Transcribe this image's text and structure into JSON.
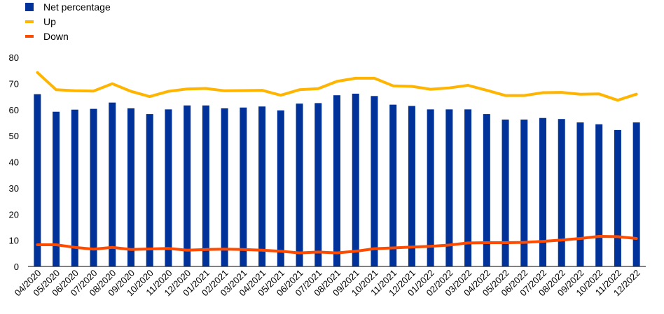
{
  "chart_data": {
    "type": "bar",
    "legend": {
      "placement": "top-left",
      "items": [
        {
          "label": "Net percentage",
          "kind": "bar",
          "color": "#003299"
        },
        {
          "label": "Up",
          "kind": "line",
          "color": "#FFB400"
        },
        {
          "label": "Down",
          "kind": "line",
          "color": "#FF4B00"
        }
      ]
    },
    "categories": [
      "04/2020",
      "05/2020",
      "06/2020",
      "07/2020",
      "08/2020",
      "09/2020",
      "10/2020",
      "11/2020",
      "12/2020",
      "01/2021",
      "02/2021",
      "03/2021",
      "04/2021",
      "05/2021",
      "06/2021",
      "07/2021",
      "08/2021",
      "09/2021",
      "10/2021",
      "11/2021",
      "12/2021",
      "01/2022",
      "02/2022",
      "03/2022",
      "04/2022",
      "05/2022",
      "06/2022",
      "07/2022",
      "08/2022",
      "09/2022",
      "10/2022",
      "11/2022",
      "12/2022"
    ],
    "series": [
      {
        "name": "Net percentage",
        "type": "bar",
        "color": "#003299",
        "values": [
          65.9,
          59.2,
          60.0,
          60.3,
          62.7,
          60.5,
          58.3,
          60.1,
          61.6,
          61.6,
          60.5,
          60.8,
          61.2,
          59.7,
          62.3,
          62.5,
          65.5,
          66.1,
          65.2,
          61.9,
          61.4,
          60.1,
          60.1,
          60.1,
          58.3,
          56.2,
          56.2,
          56.8,
          56.4,
          55.1,
          54.4,
          52.2,
          55.1
        ]
      },
      {
        "name": "Up",
        "type": "line",
        "color": "#FFB400",
        "values": [
          74.2,
          67.6,
          67.2,
          67.1,
          69.9,
          67.0,
          65.0,
          67.0,
          67.9,
          68.1,
          67.2,
          67.3,
          67.4,
          65.5,
          67.6,
          68.0,
          70.8,
          72.0,
          72.0,
          69.1,
          68.9,
          67.8,
          68.3,
          69.3,
          67.4,
          65.4,
          65.4,
          66.5,
          66.6,
          65.9,
          66.0,
          63.6,
          65.9
        ]
      },
      {
        "name": "Down",
        "type": "line",
        "color": "#FF4B00",
        "values": [
          8.3,
          8.3,
          7.3,
          6.6,
          7.3,
          6.5,
          6.7,
          6.9,
          6.2,
          6.5,
          6.6,
          6.5,
          6.2,
          5.8,
          5.2,
          5.5,
          5.2,
          5.8,
          6.8,
          7.1,
          7.4,
          7.7,
          8.2,
          9.0,
          9.1,
          9.1,
          9.2,
          9.6,
          10.1,
          10.7,
          11.5,
          11.4,
          10.7
        ]
      }
    ],
    "yticks": [
      "0",
      "10",
      "20",
      "30",
      "40",
      "50",
      "60",
      "70",
      "80"
    ],
    "ylim": [
      0,
      80
    ],
    "grid": false
  }
}
